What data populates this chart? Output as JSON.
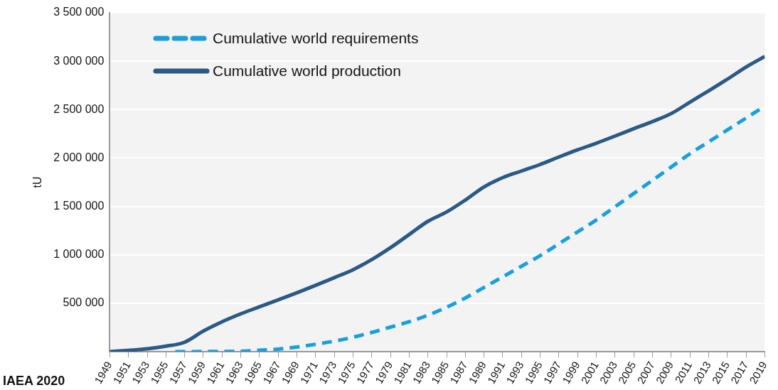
{
  "chart_data": {
    "type": "line",
    "ylabel": "tU",
    "annotations": [
      "IAEA 2020"
    ],
    "x": [
      1949,
      1951,
      1953,
      1955,
      1957,
      1959,
      1961,
      1963,
      1965,
      1967,
      1969,
      1971,
      1973,
      1975,
      1977,
      1979,
      1981,
      1983,
      1985,
      1987,
      1989,
      1991,
      1993,
      1995,
      1997,
      1999,
      2001,
      2003,
      2005,
      2007,
      2009,
      2011,
      2013,
      2015,
      2017,
      2019
    ],
    "series": [
      {
        "name": "Cumulative world requirements",
        "color": "#18a0dc",
        "line_style": "dashed",
        "x": [
          1956,
          1957,
          1959,
          1961,
          1963,
          1965,
          1967,
          1969,
          1971,
          1973,
          1975,
          1977,
          1979,
          1981,
          1983,
          1985,
          1987,
          1989,
          1991,
          1993,
          1995,
          1997,
          1999,
          2001,
          2003,
          2005,
          2007,
          2009,
          2011,
          2013,
          2015,
          2017,
          2019
        ],
        "values": [
          0,
          0,
          2000,
          3000,
          5000,
          16000,
          27000,
          49000,
          77000,
          109000,
          150000,
          199000,
          254000,
          309000,
          377000,
          459000,
          555000,
          664000,
          773000,
          883000,
          992000,
          1115000,
          1238000,
          1361000,
          1497000,
          1634000,
          1770000,
          1907000,
          2044000,
          2167000,
          2290000,
          2413000,
          2536000
        ]
      },
      {
        "name": "Cumulative world production",
        "color": "#2b5a86",
        "line_style": "solid",
        "values": [
          0,
          14000,
          30000,
          57000,
          98000,
          213000,
          309000,
          391000,
          464000,
          536000,
          609000,
          686000,
          765000,
          847000,
          951000,
          1074000,
          1210000,
          1347000,
          1443000,
          1566000,
          1702000,
          1798000,
          1866000,
          1934000,
          2011000,
          2085000,
          2153000,
          2227000,
          2303000,
          2377000,
          2459000,
          2577000,
          2694000,
          2814000,
          2940000,
          3049000
        ]
      }
    ],
    "xlim": [
      1949,
      2019
    ],
    "xticks": [
      1949,
      1951,
      1953,
      1955,
      1957,
      1959,
      1961,
      1963,
      1965,
      1967,
      1969,
      1971,
      1973,
      1975,
      1977,
      1979,
      1981,
      1983,
      1985,
      1987,
      1989,
      1991,
      1993,
      1995,
      1997,
      1999,
      2001,
      2003,
      2005,
      2007,
      2009,
      2011,
      2013,
      2015,
      2017,
      2019
    ],
    "ylim": [
      0,
      3500000
    ],
    "yticks": [
      {
        "value": 0,
        "label": null
      },
      {
        "value": 500000,
        "label": "500 000"
      },
      {
        "value": 1000000,
        "label": "1 000 000"
      },
      {
        "value": 1500000,
        "label": "1 500 000"
      },
      {
        "value": 2000000,
        "label": "2 000 000"
      },
      {
        "value": 2500000,
        "label": "2 500 000"
      },
      {
        "value": 3000000,
        "label": "3 000 000"
      },
      {
        "value": 3500000,
        "label": "3 500 000"
      }
    ],
    "grid": "y",
    "legend": "top left",
    "marker": "none"
  }
}
